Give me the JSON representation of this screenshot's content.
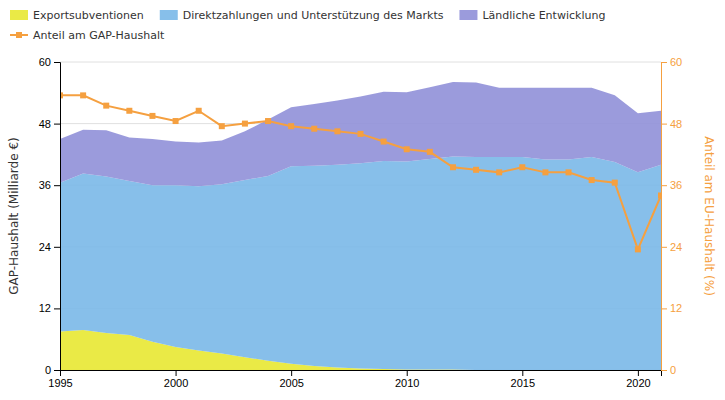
{
  "chart_data": {
    "type": "area",
    "stacked": true,
    "x": [
      1995,
      1996,
      1997,
      1998,
      1999,
      2000,
      2001,
      2002,
      2003,
      2004,
      2005,
      2006,
      2007,
      2008,
      2009,
      2010,
      2011,
      2012,
      2013,
      2014,
      2015,
      2016,
      2017,
      2018,
      2019,
      2020,
      2021
    ],
    "xlim": [
      1995,
      2021
    ],
    "xticks": [
      1995,
      2000,
      2005,
      2010,
      2015,
      2020
    ],
    "ylim": [
      0,
      60
    ],
    "yticks": [
      0,
      12,
      24,
      36,
      48,
      60
    ],
    "y2lim": [
      0,
      60
    ],
    "y2ticks": [
      0,
      12,
      24,
      36,
      48,
      60
    ],
    "ylabel": "GAP-Haushalt (Milliarde €)",
    "y2label": "Anteil am EU-Haushalt (%)",
    "grid": true,
    "legend": "top",
    "series": [
      {
        "name": "Exportsubventionen",
        "color": "#e8e832",
        "values": [
          7.5,
          7.8,
          7.2,
          6.8,
          5.5,
          4.5,
          3.8,
          3.2,
          2.5,
          1.8,
          1.2,
          0.8,
          0.5,
          0.3,
          0.2,
          0.1,
          0.1,
          0.1,
          0.0,
          0.0,
          0.0,
          0.0,
          0.0,
          0.0,
          0.0,
          0.0,
          0.0
        ]
      },
      {
        "name": "Direktzahlungen und Unterstützung des Markts",
        "color": "#7ab8e8",
        "values": [
          29.0,
          30.5,
          30.5,
          30.0,
          30.5,
          31.5,
          32.0,
          33.0,
          34.5,
          36.0,
          38.5,
          39.0,
          39.5,
          40.0,
          40.5,
          40.5,
          41.0,
          41.5,
          41.5,
          41.5,
          41.5,
          41.0,
          41.0,
          41.5,
          40.5,
          38.5,
          40.0
        ]
      },
      {
        "name": "Ländliche Entwicklung",
        "color": "#9090d8",
        "values": [
          8.5,
          8.5,
          9.0,
          8.5,
          9.0,
          8.5,
          8.5,
          8.5,
          9.5,
          11.0,
          11.5,
          12.0,
          12.5,
          13.0,
          13.5,
          13.5,
          14.0,
          14.5,
          14.5,
          13.5,
          13.5,
          14.0,
          14.0,
          13.5,
          13.0,
          11.5,
          10.5
        ]
      },
      {
        "name": "Anteil am GAP-Haushalt",
        "color": "#f5a040",
        "type": "line",
        "axis": "y2",
        "marker": "square",
        "values": [
          53.5,
          53.5,
          51.5,
          50.5,
          49.5,
          48.5,
          50.5,
          47.5,
          48.0,
          48.5,
          47.5,
          47.0,
          46.5,
          46.0,
          44.5,
          43.0,
          42.5,
          39.5,
          39.0,
          38.5,
          39.5,
          38.5,
          38.5,
          37.0,
          36.5,
          23.5,
          34.0
        ]
      }
    ]
  }
}
